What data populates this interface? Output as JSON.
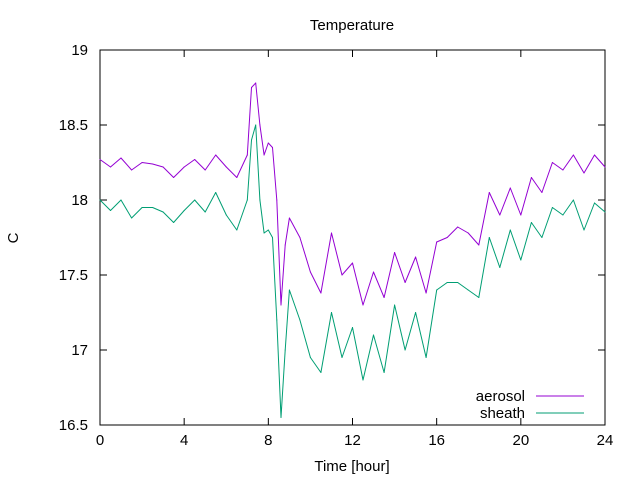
{
  "chart_data": {
    "type": "line",
    "title": "Temperature",
    "xlabel": "Time [hour]",
    "ylabel": "C",
    "xlim": [
      0,
      24
    ],
    "ylim": [
      16.5,
      19
    ],
    "xticks": [
      0,
      4,
      8,
      12,
      16,
      20,
      24
    ],
    "yticks": [
      16.5,
      17,
      17.5,
      18,
      18.5,
      19
    ],
    "ytick_labels": [
      "16.5",
      "17",
      "17.5",
      "18",
      "18.5",
      "19"
    ],
    "grid": false,
    "legend_position": "bottom-right",
    "series": [
      {
        "name": "aerosol",
        "color": "#9400d3",
        "x": [
          0,
          0.5,
          1,
          1.5,
          2,
          2.5,
          3,
          3.5,
          4,
          4.5,
          5,
          5.5,
          6,
          6.5,
          7,
          7.2,
          7.4,
          7.6,
          7.8,
          8,
          8.2,
          8.4,
          8.6,
          8.8,
          9,
          9.5,
          10,
          10.5,
          11,
          11.5,
          12,
          12.5,
          13,
          13.5,
          14,
          14.5,
          15,
          15.5,
          16,
          16.5,
          17,
          17.5,
          18,
          18.5,
          19,
          19.5,
          20,
          20.5,
          21,
          21.5,
          22,
          22.5,
          23,
          23.5,
          24
        ],
        "values": [
          18.27,
          18.22,
          18.28,
          18.2,
          18.25,
          18.24,
          18.22,
          18.15,
          18.22,
          18.27,
          18.2,
          18.3,
          18.22,
          18.15,
          18.3,
          18.75,
          18.78,
          18.5,
          18.3,
          18.38,
          18.35,
          18.0,
          17.3,
          17.7,
          17.88,
          17.75,
          17.52,
          17.38,
          17.78,
          17.5,
          17.58,
          17.3,
          17.52,
          17.35,
          17.65,
          17.45,
          17.62,
          17.38,
          17.72,
          17.75,
          17.82,
          17.78,
          17.7,
          18.05,
          17.9,
          18.08,
          17.9,
          18.15,
          18.05,
          18.25,
          18.2,
          18.3,
          18.18,
          18.3,
          18.22
        ]
      },
      {
        "name": "sheath",
        "color": "#009e73",
        "x": [
          0,
          0.5,
          1,
          1.5,
          2,
          2.5,
          3,
          3.5,
          4,
          4.5,
          5,
          5.5,
          6,
          6.5,
          7,
          7.2,
          7.4,
          7.6,
          7.8,
          8,
          8.2,
          8.4,
          8.6,
          8.8,
          9,
          9.5,
          10,
          10.5,
          11,
          11.5,
          12,
          12.5,
          13,
          13.5,
          14,
          14.5,
          15,
          15.5,
          16,
          16.5,
          17,
          17.5,
          18,
          18.5,
          19,
          19.5,
          20,
          20.5,
          21,
          21.5,
          22,
          22.5,
          23,
          23.5,
          24
        ],
        "values": [
          18.0,
          17.93,
          18.0,
          17.88,
          17.95,
          17.95,
          17.92,
          17.85,
          17.93,
          18.0,
          17.92,
          18.05,
          17.9,
          17.8,
          18.0,
          18.4,
          18.5,
          18.0,
          17.78,
          17.8,
          17.75,
          17.2,
          16.55,
          17.0,
          17.4,
          17.2,
          16.95,
          16.85,
          17.25,
          16.95,
          17.15,
          16.8,
          17.1,
          16.85,
          17.3,
          17.0,
          17.25,
          16.95,
          17.4,
          17.45,
          17.45,
          17.4,
          17.35,
          17.75,
          17.55,
          17.8,
          17.6,
          17.85,
          17.75,
          17.95,
          17.9,
          18.0,
          17.8,
          17.98,
          17.92
        ]
      }
    ]
  }
}
